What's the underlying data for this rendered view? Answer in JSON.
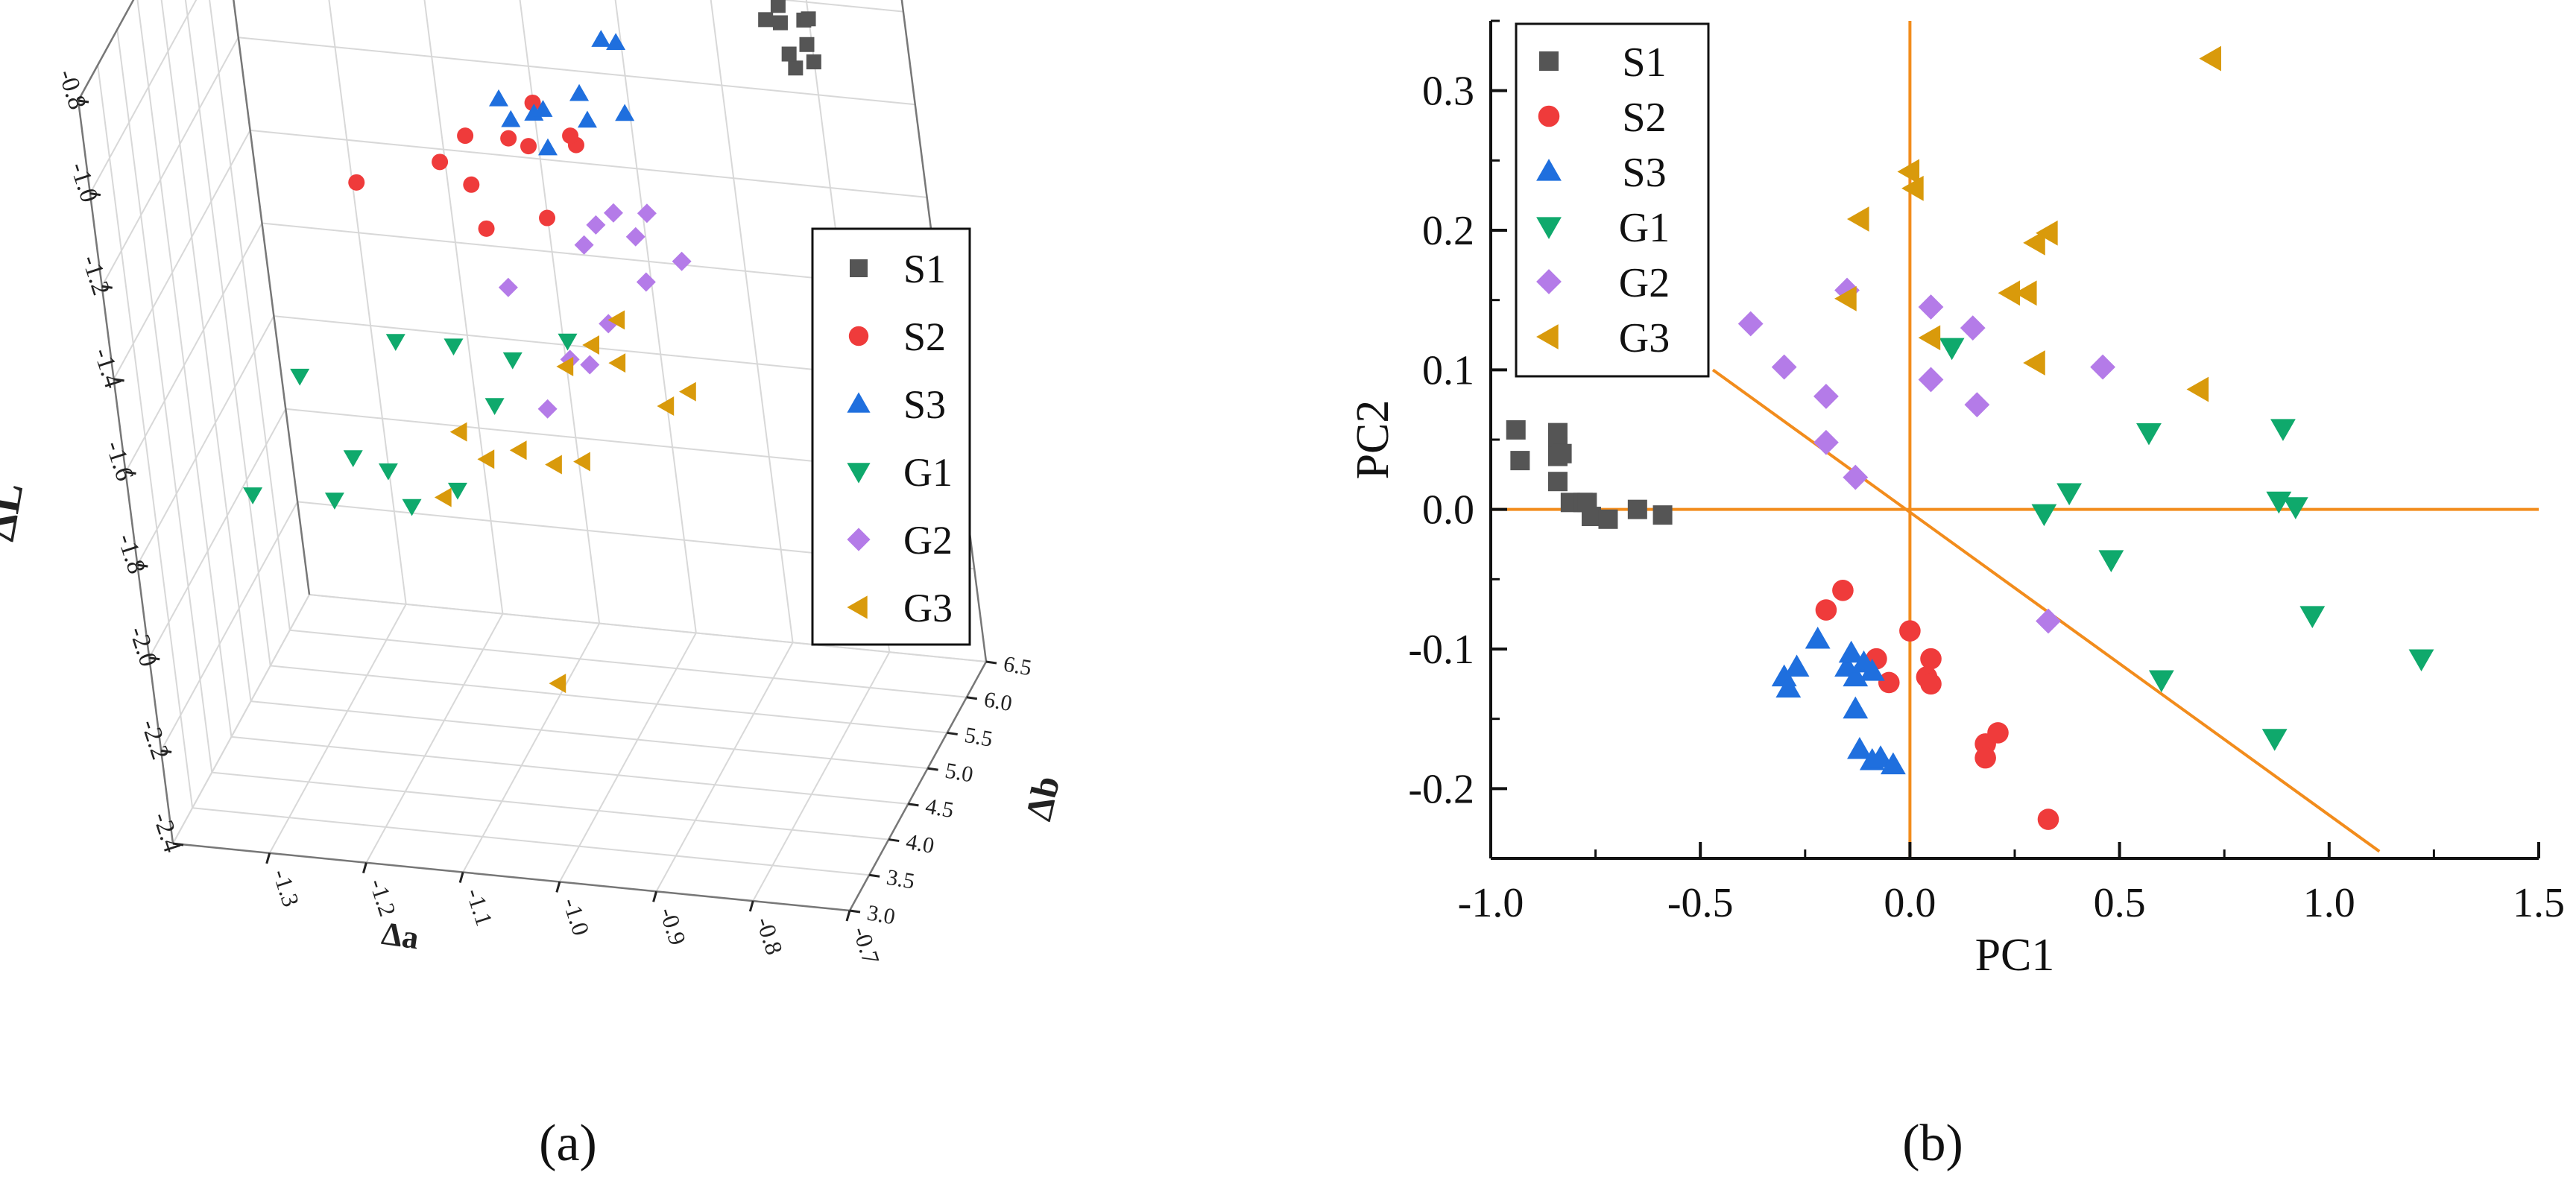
{
  "figure": {
    "panels": [
      "(a)",
      "(b)"
    ]
  },
  "colors": {
    "S1": "#555555",
    "S2": "#ef3b3b",
    "S3": "#1f6fde",
    "G1": "#0fa96c",
    "G2": "#b47be8",
    "G3": "#d99a0b",
    "axis_line": "#f28c1c"
  },
  "legend": [
    {
      "name": "S1",
      "marker": "square"
    },
    {
      "name": "S2",
      "marker": "circle"
    },
    {
      "name": "S3",
      "marker": "triangle-up"
    },
    {
      "name": "G1",
      "marker": "triangle-down"
    },
    {
      "name": "G2",
      "marker": "diamond"
    },
    {
      "name": "G3",
      "marker": "triangle-left"
    }
  ],
  "chart_data": [
    {
      "type": "scatter",
      "panel": "(a)",
      "projection": "3d",
      "title": "",
      "xlabel": "Δa",
      "ylabel": "Δb",
      "zlabel": "ΔL",
      "xlim": [
        -1.4,
        -0.7
      ],
      "ylim": [
        3.0,
        6.5
      ],
      "zlim": [
        -2.4,
        -0.8
      ],
      "x_ticks": [
        "-1.3",
        "-1.2",
        "-1.1",
        "-1.0",
        "-0.9",
        "-0.8",
        "-0.7"
      ],
      "y_ticks": [
        "3.0",
        "3.5",
        "4.0",
        "4.5",
        "5.0",
        "5.5",
        "6.0",
        "6.5"
      ],
      "z_ticks": [
        "-0.8",
        "-1.0",
        "-1.2",
        "-1.4",
        "-1.6",
        "-1.8",
        "-2.0",
        "-2.2",
        "-2.4"
      ],
      "legend_position": "right",
      "series": [
        {
          "name": "S1",
          "points": [
            [
              -0.78,
              5.5,
              -0.85
            ],
            [
              -0.76,
              5.3,
              -0.95
            ],
            [
              -0.8,
              5.6,
              -0.9
            ],
            [
              -0.74,
              5.2,
              -0.88
            ],
            [
              -0.77,
              5.8,
              -0.82
            ],
            [
              -0.75,
              5.4,
              -0.86
            ],
            [
              -0.79,
              5.7,
              -0.92
            ],
            [
              -0.76,
              5.5,
              -0.8
            ],
            [
              -0.73,
              5.1,
              -0.9
            ],
            [
              -0.78,
              5.6,
              -0.97
            ],
            [
              -0.74,
              5.3,
              -0.84
            ],
            [
              -0.77,
              5.9,
              -0.88
            ]
          ]
        },
        {
          "name": "S2",
          "points": [
            [
              -1.2,
              4.6,
              -1.18
            ],
            [
              -1.12,
              4.8,
              -1.15
            ],
            [
              -1.05,
              4.9,
              -1.1
            ],
            [
              -1.1,
              5.0,
              -1.12
            ],
            [
              -1.02,
              4.7,
              -1.08
            ],
            [
              -1.0,
              4.5,
              -1.2
            ],
            [
              -1.08,
              4.6,
              -1.16
            ],
            [
              -1.03,
              5.1,
              -1.05
            ],
            [
              -0.98,
              4.9,
              -1.1
            ],
            [
              -1.06,
              4.4,
              -1.22
            ],
            [
              -1.0,
              5.2,
              -1.13
            ]
          ]
        },
        {
          "name": "S3",
          "points": [
            [
              -1.05,
              4.8,
              -1.0
            ],
            [
              -1.02,
              4.9,
              -1.04
            ],
            [
              -0.96,
              5.3,
              -0.93
            ],
            [
              -0.98,
              5.1,
              -1.02
            ],
            [
              -0.95,
              5.4,
              -0.95
            ],
            [
              -1.0,
              4.7,
              -1.08
            ],
            [
              -0.97,
              5.0,
              -1.06
            ],
            [
              -1.03,
              4.6,
              -1.01
            ],
            [
              -0.94,
              5.2,
              -1.07
            ],
            [
              -1.01,
              4.9,
              -1.03
            ]
          ]
        },
        {
          "name": "G1",
          "points": [
            [
              -1.25,
              3.9,
              -1.5
            ],
            [
              -1.3,
              3.6,
              -1.72
            ],
            [
              -1.2,
              3.8,
              -1.65
            ],
            [
              -1.15,
              4.0,
              -1.42
            ],
            [
              -1.1,
              4.2,
              -1.45
            ],
            [
              -1.18,
              4.1,
              -1.72
            ],
            [
              -1.12,
              4.3,
              -1.78
            ],
            [
              -1.05,
              4.4,
              -1.5
            ],
            [
              -1.08,
              4.5,
              -1.62
            ],
            [
              -1.0,
              4.6,
              -1.48
            ],
            [
              -1.22,
              3.7,
              -1.73
            ],
            [
              -1.15,
              3.9,
              -1.76
            ]
          ]
        },
        {
          "name": "G2",
          "points": [
            [
              -1.05,
              4.5,
              -1.36
            ],
            [
              -0.98,
              4.8,
              -1.3
            ],
            [
              -0.95,
              4.9,
              -1.24
            ],
            [
              -0.92,
              5.0,
              -1.25
            ],
            [
              -0.9,
              5.2,
              -1.38
            ],
            [
              -0.96,
              4.7,
              -1.45
            ],
            [
              -1.0,
              4.6,
              -1.52
            ],
            [
              -0.97,
              4.9,
              -1.27
            ],
            [
              -1.02,
              4.4,
              -1.6
            ],
            [
              -0.94,
              5.1,
              -1.32
            ],
            [
              -0.99,
              4.8,
              -1.56
            ],
            [
              -0.93,
              5.0,
              -1.4
            ]
          ]
        },
        {
          "name": "G3",
          "points": [
            [
              -1.1,
              4.1,
              -1.62
            ],
            [
              -1.05,
              4.3,
              -1.68
            ],
            [
              -1.0,
              4.5,
              -1.52
            ],
            [
              -0.95,
              4.7,
              -1.44
            ],
            [
              -0.9,
              5.0,
              -1.63
            ],
            [
              -1.02,
              4.4,
              -1.72
            ],
            [
              -1.08,
              4.2,
              -1.69
            ],
            [
              -0.96,
              4.8,
              -1.55
            ],
            [
              -1.0,
              4.6,
              -1.74
            ],
            [
              -0.92,
              4.9,
              -1.65
            ],
            [
              -1.04,
              4.3,
              -2.18
            ],
            [
              -1.12,
              4.0,
              -1.75
            ],
            [
              -0.98,
              4.7,
              -1.5
            ]
          ]
        }
      ]
    },
    {
      "type": "scatter",
      "panel": "(b)",
      "title": "",
      "xlabel": "PC1",
      "ylabel": "PC2",
      "xlim": [
        -1.0,
        1.5
      ],
      "ylim": [
        -0.25,
        0.35
      ],
      "x_ticks": [
        "-1.0",
        "-0.5",
        "0.0",
        "0.5",
        "1.0",
        "1.5"
      ],
      "y_ticks": [
        "-0.2",
        "-0.1",
        "0.0",
        "0.1",
        "0.2",
        "0.3"
      ],
      "grid": false,
      "legend_position": "top-left",
      "reference_lines": [
        {
          "kind": "horizontal",
          "y": 0.0
        },
        {
          "kind": "vertical",
          "x": 0.0
        },
        {
          "kind": "diagonal",
          "from": [
            -0.47,
            0.1
          ],
          "to": [
            1.12,
            -0.245
          ]
        }
      ],
      "series": [
        {
          "name": "S1",
          "points": [
            [
              -0.94,
              0.057
            ],
            [
              -0.93,
              0.035
            ],
            [
              -0.84,
              0.055
            ],
            [
              -0.84,
              0.045
            ],
            [
              -0.84,
              0.038
            ],
            [
              -0.84,
              0.02
            ],
            [
              -0.81,
              0.005
            ],
            [
              -0.78,
              0.005
            ],
            [
              -0.77,
              0.005
            ],
            [
              -0.76,
              -0.005
            ],
            [
              -0.72,
              -0.007
            ],
            [
              -0.65,
              0.0
            ],
            [
              -0.59,
              -0.004
            ],
            [
              -0.83,
              0.04
            ]
          ]
        },
        {
          "name": "S2",
          "points": [
            [
              -0.16,
              -0.058
            ],
            [
              -0.2,
              -0.072
            ],
            [
              -0.08,
              -0.107
            ],
            [
              -0.05,
              -0.124
            ],
            [
              0.0,
              -0.087
            ],
            [
              0.05,
              -0.107
            ],
            [
              0.04,
              -0.12
            ],
            [
              0.05,
              -0.125
            ],
            [
              0.18,
              -0.168
            ],
            [
              0.21,
              -0.16
            ],
            [
              0.18,
              -0.178
            ],
            [
              0.33,
              -0.222
            ]
          ]
        },
        {
          "name": "S3",
          "points": [
            [
              -0.3,
              -0.12
            ],
            [
              -0.29,
              -0.128
            ],
            [
              -0.27,
              -0.113
            ],
            [
              -0.22,
              -0.093
            ],
            [
              -0.15,
              -0.113
            ],
            [
              -0.14,
              -0.103
            ],
            [
              -0.13,
              -0.12
            ],
            [
              -0.11,
              -0.11
            ],
            [
              -0.13,
              -0.143
            ],
            [
              -0.12,
              -0.172
            ],
            [
              -0.09,
              -0.18
            ],
            [
              -0.07,
              -0.178
            ],
            [
              -0.04,
              -0.183
            ],
            [
              -0.09,
              -0.116
            ]
          ]
        },
        {
          "name": "G1",
          "points": [
            [
              0.1,
              0.116
            ],
            [
              0.57,
              0.055
            ],
            [
              0.89,
              0.058
            ],
            [
              0.38,
              0.012
            ],
            [
              0.88,
              0.006
            ],
            [
              0.92,
              0.002
            ],
            [
              0.32,
              -0.003
            ],
            [
              0.48,
              -0.036
            ],
            [
              0.96,
              -0.076
            ],
            [
              0.6,
              -0.122
            ],
            [
              1.22,
              -0.107
            ],
            [
              0.87,
              -0.164
            ]
          ]
        },
        {
          "name": "G2",
          "points": [
            [
              -0.38,
              0.133
            ],
            [
              -0.15,
              0.157
            ],
            [
              0.05,
              0.145
            ],
            [
              0.15,
              0.13
            ],
            [
              -0.3,
              0.102
            ],
            [
              0.46,
              0.102
            ],
            [
              -0.2,
              0.081
            ],
            [
              0.05,
              0.093
            ],
            [
              0.16,
              0.075
            ],
            [
              -0.2,
              0.048
            ],
            [
              -0.13,
              0.023
            ],
            [
              0.33,
              -0.08
            ]
          ]
        },
        {
          "name": "G3",
          "points": [
            [
              0.72,
              0.323
            ],
            [
              0.0,
              0.242
            ],
            [
              0.01,
              0.23
            ],
            [
              -0.12,
              0.208
            ],
            [
              0.33,
              0.198
            ],
            [
              0.3,
              0.191
            ],
            [
              -0.15,
              0.151
            ],
            [
              0.24,
              0.155
            ],
            [
              0.28,
              0.155
            ],
            [
              0.05,
              0.123
            ],
            [
              0.3,
              0.105
            ],
            [
              0.69,
              0.086
            ]
          ]
        }
      ]
    }
  ]
}
